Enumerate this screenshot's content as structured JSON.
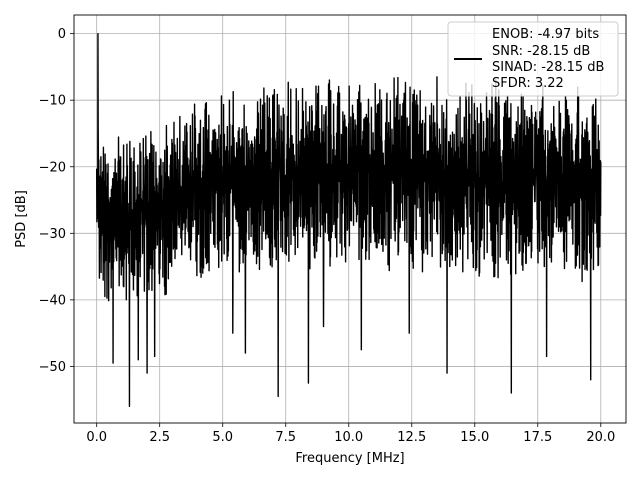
{
  "chart_data": {
    "type": "line",
    "title": "",
    "xlabel": "Frequency [MHz]",
    "ylabel": "PSD [dB]",
    "xlim": [
      -0.9,
      21.0
    ],
    "ylim": [
      -58.5,
      2.8
    ],
    "xticks": [
      0.0,
      2.5,
      5.0,
      7.5,
      10.0,
      12.5,
      15.0,
      17.5,
      20.0
    ],
    "xtick_labels": [
      "0.0",
      "2.5",
      "5.0",
      "7.5",
      "10.0",
      "12.5",
      "15.0",
      "17.5",
      "20.0"
    ],
    "yticks": [
      0,
      -10,
      -20,
      -30,
      -40,
      -50
    ],
    "ytick_labels": [
      "0",
      "−10",
      "−20",
      "−30",
      "−40",
      "−50"
    ],
    "grid": true,
    "legend_position": "top-right",
    "legend_lines": [
      "ENOB: -4.97 bits",
      "SNR: -28.15 dB",
      "SINAD: -28.15 dB",
      "SFDR: 3.22"
    ],
    "series": [
      {
        "color": "#000000",
        "x_range": [
          0.0,
          20.0
        ],
        "peak": {
          "x": 0.05,
          "y": 0.0
        },
        "envelope_x": [
          0.0,
          1.0,
          2.5,
          5.0,
          7.5,
          10.0,
          12.5,
          15.0,
          17.5,
          20.0
        ],
        "envelope_max_db": [
          -13,
          -15,
          -13,
          -8,
          -7,
          -6.5,
          -6,
          -6,
          -7,
          -8
        ],
        "envelope_min_db": [
          -40,
          -42,
          -40,
          -36,
          -36,
          -35,
          -36,
          -37,
          -37,
          -38
        ],
        "deep_dips": [
          {
            "x": 0.65,
            "y": -49.5
          },
          {
            "x": 1.3,
            "y": -56.0
          },
          {
            "x": 1.65,
            "y": -49.0
          },
          {
            "x": 2.0,
            "y": -51.0
          },
          {
            "x": 2.3,
            "y": -48.5
          },
          {
            "x": 5.4,
            "y": -45.0
          },
          {
            "x": 5.9,
            "y": -48.0
          },
          {
            "x": 7.2,
            "y": -54.5
          },
          {
            "x": 8.4,
            "y": -52.5
          },
          {
            "x": 9.0,
            "y": -44.0
          },
          {
            "x": 10.5,
            "y": -47.5
          },
          {
            "x": 12.4,
            "y": -45.0
          },
          {
            "x": 13.9,
            "y": -51.0
          },
          {
            "x": 16.45,
            "y": -54.0
          },
          {
            "x": 17.85,
            "y": -48.5
          },
          {
            "x": 19.6,
            "y": -52.0
          }
        ]
      }
    ]
  }
}
